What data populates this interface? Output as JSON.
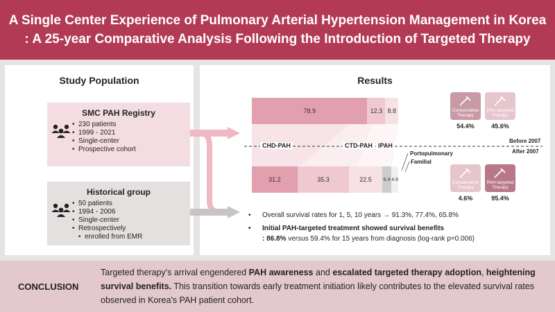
{
  "header": {
    "title_line1": "A Single Center Experience of Pulmonary Arterial Hypertension Management in Korea",
    "title_line2": ": A 25-year Comparative Analysis Following the Introduction of Targeted Therapy"
  },
  "study_population": {
    "title": "Study Population",
    "registry": {
      "title": "SMC PAH Registry",
      "items": [
        "230 patients",
        "1999 - 2021",
        "Single-center",
        "Prospective cohort"
      ]
    },
    "historical": {
      "title": "Historical group",
      "items": [
        "50 patients",
        "1994 - 2006",
        "Single-center",
        "Retrospectively"
      ],
      "item_continuation": "enrolled from EMR"
    }
  },
  "results": {
    "title": "Results",
    "before_label": "Before 2007",
    "after_label": "After 2007",
    "categories": {
      "chd": "CHD-PAH",
      "ctd": "CTD-PAH",
      "ipah": "IPAH",
      "portopulmonary": "Portopulmonary",
      "familial": "Familial"
    },
    "before_bar": [
      {
        "label": "78.9",
        "value": 78.9,
        "color": "#e29fae"
      },
      {
        "label": "12.3",
        "value": 12.3,
        "color": "#efc8d0"
      },
      {
        "label": "8.8",
        "value": 8.8,
        "color": "#f6e1e5"
      }
    ],
    "after_bar": [
      {
        "label": "31.2",
        "value": 31.2,
        "color": "#e29fae"
      },
      {
        "label": "35.3",
        "value": 35.3,
        "color": "#efc8d0"
      },
      {
        "label": "22.5",
        "value": 22.5,
        "color": "#f6e1e5"
      },
      {
        "label": "6.4",
        "value": 6.4,
        "color": "#cccccc"
      },
      {
        "label": "4.6",
        "value": 4.6,
        "color": "#f1f1f1"
      }
    ],
    "therapy_before": {
      "conservative_label": "Conservative Therapy",
      "targeted_label": "PAH-targeted Therapy",
      "conservative_pct": "54.4%",
      "targeted_pct": "45.6%",
      "conservative_value": 54.4,
      "targeted_value": 45.6
    },
    "therapy_after": {
      "conservative_label": "Conservative Therapy",
      "targeted_label": "PAH-targeted Therapy",
      "conservative_pct": "4.6%",
      "targeted_pct": "95.4%",
      "conservative_value": 4.6,
      "targeted_value": 95.4
    },
    "bullet1": "Overall survival rates for 1, 5, 10 years → 91.3%, 77.4%, 65.8%",
    "bullet2": "Initial PAH-targeted treatment showed survival benefits",
    "bullet2_sub_bold": ": 86.8%",
    "bullet2_sub_rest": " versus 59.4% for 15 years from diagnosis (log-rank p=0.006)"
  },
  "conclusion": {
    "label": "CONCLUSION",
    "p1": "Targeted therapy's arrival engendered ",
    "b1": "PAH awareness",
    "p2": " and ",
    "b2": "escalated targeted therapy adoption",
    "p3": ", ",
    "b3": "heightening survival benefits.",
    "p4": " This transition towards early treatment initiation likely contributes to the elevated survival rates observed in Korea's PAH patient cohort."
  },
  "colors": {
    "header": "#b33a55",
    "accent_pink": "#e29fae",
    "arrow_pink": "#eeb9c4",
    "arrow_gray": "#c8c4c4"
  }
}
